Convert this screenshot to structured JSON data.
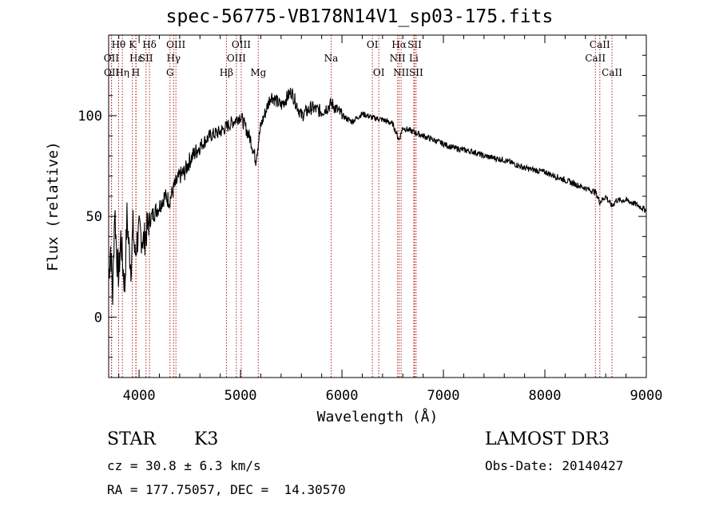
{
  "chart_data": {
    "type": "line",
    "title": "spec-56775-VB178N14V1_sp03-175.fits",
    "xlabel": "Wavelength (Å)",
    "ylabel": "Flux (relative)",
    "xlim": [
      3700,
      9000
    ],
    "ylim": [
      -30,
      140
    ],
    "x_ticks": [
      4000,
      5000,
      6000,
      7000,
      8000,
      9000
    ],
    "x_tick_labels": [
      "4000",
      "5000",
      "6000",
      "7000",
      "8000",
      "9000"
    ],
    "y_ticks": [
      0,
      50,
      100
    ],
    "y_tick_labels": [
      "0",
      "50",
      "100"
    ],
    "line_color": "#000000",
    "marker_color": "#b22222",
    "series": [
      {
        "name": "flux",
        "x": [
          3700,
          3720,
          3740,
          3760,
          3780,
          3800,
          3820,
          3840,
          3860,
          3880,
          3900,
          3920,
          3940,
          3960,
          3980,
          4000,
          4050,
          4100,
          4150,
          4200,
          4250,
          4300,
          4350,
          4400,
          4450,
          4500,
          4600,
          4700,
          4800,
          4900,
          5000,
          5100,
          5150,
          5200,
          5300,
          5400,
          5500,
          5600,
          5700,
          5800,
          5900,
          6000,
          6100,
          6200,
          6300,
          6400,
          6500,
          6563,
          6600,
          6700,
          6800,
          6900,
          7000,
          7100,
          7200,
          7300,
          7400,
          7500,
          7600,
          7700,
          7800,
          7900,
          8000,
          8100,
          8200,
          8300,
          8400,
          8500,
          8542,
          8600,
          8662,
          8700,
          8800,
          8900,
          9000
        ],
        "y": [
          20,
          35,
          10,
          55,
          30,
          20,
          40,
          25,
          15,
          50,
          35,
          25,
          45,
          30,
          38,
          42,
          38,
          48,
          52,
          55,
          60,
          58,
          65,
          70,
          72,
          78,
          85,
          90,
          92,
          96,
          100,
          88,
          78,
          95,
          110,
          105,
          112,
          100,
          104,
          102,
          106,
          100,
          97,
          101,
          99,
          98,
          96,
          88,
          94,
          92,
          90,
          88,
          86,
          84,
          83,
          82,
          80,
          79,
          78,
          76,
          74,
          73,
          72,
          70,
          68,
          66,
          64,
          62,
          57,
          60,
          55,
          58,
          58,
          56,
          53
        ]
      }
    ],
    "lines": [
      {
        "name": "Hθ",
        "wave": 3798,
        "row": 0
      },
      {
        "name": "OII",
        "wave": 3727,
        "row": 1
      },
      {
        "name": "OII",
        "wave": 3729,
        "row": 2
      },
      {
        "name": "Hε",
        "wave": 3970,
        "row": 1
      },
      {
        "name": "Hη",
        "wave": 3835,
        "row": 2
      },
      {
        "name": "K",
        "wave": 3934,
        "row": 0
      },
      {
        "name": "SII",
        "wave": 4068,
        "row": 1
      },
      {
        "name": "H",
        "wave": 3968,
        "row": 2
      },
      {
        "name": "Hδ",
        "wave": 4102,
        "row": 0
      },
      {
        "name": "OIII",
        "wave": 4363,
        "row": 0
      },
      {
        "name": "Hγ",
        "wave": 4340,
        "row": 1
      },
      {
        "name": "G",
        "wave": 4305,
        "row": 2
      },
      {
        "name": "Hβ",
        "wave": 4861,
        "row": 2
      },
      {
        "name": "OIII",
        "wave": 5007,
        "row": 0
      },
      {
        "name": "OIII",
        "wave": 4959,
        "row": 1
      },
      {
        "name": "Mg",
        "wave": 5175,
        "row": 2
      },
      {
        "name": "Na",
        "wave": 5893,
        "row": 1
      },
      {
        "name": "OI",
        "wave": 6300,
        "row": 0
      },
      {
        "name": "OI",
        "wave": 6363,
        "row": 2
      },
      {
        "name": "Hα",
        "wave": 6563,
        "row": 0
      },
      {
        "name": "NII",
        "wave": 6548,
        "row": 1
      },
      {
        "name": "NII",
        "wave": 6583,
        "row": 2
      },
      {
        "name": "SII",
        "wave": 6716,
        "row": 0
      },
      {
        "name": "Li",
        "wave": 6708,
        "row": 1
      },
      {
        "name": "SII",
        "wave": 6731,
        "row": 2
      },
      {
        "name": "CaII",
        "wave": 8542,
        "row": 0
      },
      {
        "name": "CaII",
        "wave": 8498,
        "row": 1
      },
      {
        "name": "CaII",
        "wave": 8662,
        "row": 2
      }
    ]
  },
  "info": {
    "obj_class": "STAR",
    "obj_subclass": "K3",
    "survey": "LAMOST DR3",
    "cz": "cz = 30.8 ± 6.3 km/s",
    "obs_date": "Obs-Date: 20140427",
    "radec": "RA = 177.75057, DEC =  14.30570"
  }
}
